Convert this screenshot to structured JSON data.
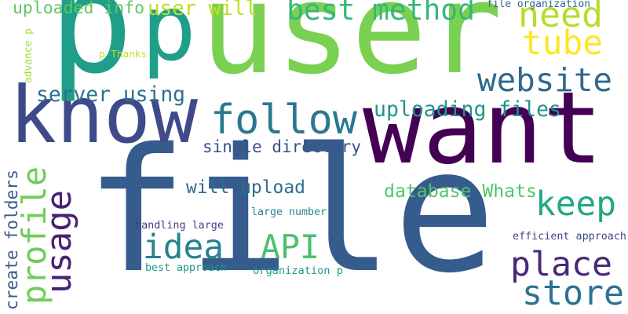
{
  "words": [
    {
      "text": "file",
      "color": "#365c8d"
    },
    {
      "text": "user",
      "color": "#7ad151"
    },
    {
      "text": "want",
      "color": "#440154"
    },
    {
      "text": "know",
      "color": "#3e4a89"
    },
    {
      "text": "p",
      "color": "#1f9e89"
    },
    {
      "text": "p",
      "color": "#1f9e89"
    },
    {
      "text": "follow",
      "color": "#2a788e"
    },
    {
      "text": "website",
      "color": "#31688e"
    },
    {
      "text": "place",
      "color": "#482878"
    },
    {
      "text": "store",
      "color": "#2c728e"
    },
    {
      "text": "idea",
      "color": "#26828e"
    },
    {
      "text": "API",
      "color": "#4ac16d"
    },
    {
      "text": "keep",
      "color": "#22a884"
    },
    {
      "text": "need",
      "color": "#b5de2b"
    },
    {
      "text": "tube",
      "color": "#fde725"
    },
    {
      "text": "best method",
      "color": "#35b779"
    },
    {
      "text": "profile",
      "color": "#6ece58"
    },
    {
      "text": "usage",
      "color": "#482173"
    },
    {
      "text": "user will",
      "color": "#bddf26"
    },
    {
      "text": "uploaded info",
      "color": "#5ec962"
    },
    {
      "text": "server using",
      "color": "#2d708e"
    },
    {
      "text": "uploading files",
      "color": "#20938c"
    },
    {
      "text": "single directory",
      "color": "#3b528b"
    },
    {
      "text": "will upload",
      "color": "#2f6c8e"
    },
    {
      "text": "database Whats",
      "color": "#52c569"
    },
    {
      "text": "create folders",
      "color": "#38598c"
    },
    {
      "text": "large number",
      "color": "#25848e"
    },
    {
      "text": "handling large",
      "color": "#433e85"
    },
    {
      "text": "best approach",
      "color": "#1f988b"
    },
    {
      "text": "organization p",
      "color": "#1e9b8a"
    },
    {
      "text": "efficient approach",
      "color": "#3f4788"
    },
    {
      "text": "file organization",
      "color": "#33638d"
    },
    {
      "text": "p Thanks",
      "color": "#c2df23"
    },
    {
      "text": "advance p",
      "color": "#a2da37"
    }
  ]
}
